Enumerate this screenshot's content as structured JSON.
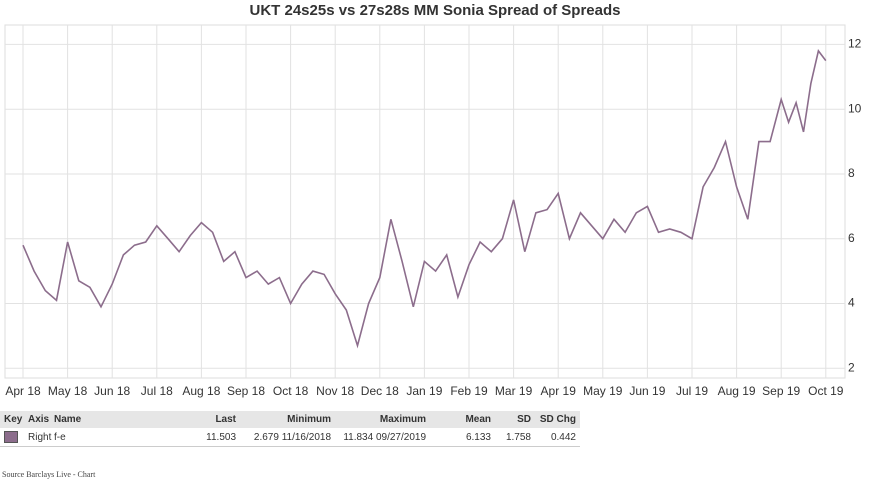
{
  "chart_data": {
    "type": "line",
    "title": "UKT 24s25s vs 27s28s MM Sonia Spread of Spreads",
    "x": [
      "Apr 18",
      "Apr 18",
      "Apr 18",
      "Apr 18",
      "May 18",
      "May 18",
      "May 18",
      "May 18",
      "Jun 18",
      "Jun 18",
      "Jun 18",
      "Jun 18",
      "Jul 18",
      "Jul 18",
      "Jul 18",
      "Jul 18",
      "Aug 18",
      "Aug 18",
      "Aug 18",
      "Aug 18",
      "Sep 18",
      "Sep 18",
      "Sep 18",
      "Sep 18",
      "Oct 18",
      "Oct 18",
      "Oct 18",
      "Oct 18",
      "Nov 18",
      "Nov 18",
      "Nov 18",
      "Nov 18",
      "Dec 18",
      "Dec 18",
      "Dec 18",
      "Dec 18",
      "Jan 19",
      "Jan 19",
      "Jan 19",
      "Jan 19",
      "Feb 19",
      "Feb 19",
      "Feb 19",
      "Feb 19",
      "Mar 19",
      "Mar 19",
      "Mar 19",
      "Mar 19",
      "Apr 19",
      "Apr 19",
      "Apr 19",
      "Apr 19",
      "May 19",
      "May 19",
      "May 19",
      "May 19",
      "Jun 19",
      "Jun 19",
      "Jun 19",
      "Jun 19",
      "Jul 19",
      "Jul 19",
      "Jul 19",
      "Jul 19",
      "Aug 19",
      "Aug 19",
      "Aug 19",
      "Aug 19",
      "Sep 19",
      "Sep 19",
      "Sep 19",
      "Sep 19",
      "Sep 19",
      "Sep 19",
      "Oct 19"
    ],
    "series": [
      {
        "name": "f-e",
        "color": "#8c6d8c",
        "values": [
          5.8,
          5.0,
          4.4,
          4.1,
          5.9,
          4.7,
          4.5,
          3.9,
          4.6,
          5.5,
          5.8,
          5.9,
          6.4,
          6.0,
          5.6,
          6.1,
          6.5,
          6.2,
          5.3,
          5.6,
          4.8,
          5.0,
          4.6,
          4.8,
          4.0,
          4.6,
          5.0,
          4.9,
          4.3,
          3.8,
          2.7,
          4.0,
          4.8,
          6.6,
          5.3,
          3.9,
          5.3,
          5.0,
          5.5,
          4.2,
          5.2,
          5.9,
          5.6,
          6.0,
          7.2,
          5.6,
          6.8,
          6.9,
          7.4,
          6.0,
          6.8,
          6.4,
          6.0,
          6.6,
          6.2,
          6.8,
          7.0,
          6.2,
          6.3,
          6.2,
          6.0,
          7.6,
          8.2,
          9.0,
          7.6,
          6.6,
          9.0,
          9.0,
          10.3,
          9.6,
          10.2,
          9.3,
          10.8,
          11.8,
          11.5
        ]
      }
    ],
    "xticks": [
      "Apr 18",
      "May 18",
      "Jun 18",
      "Jul 18",
      "Aug 18",
      "Sep 18",
      "Oct 18",
      "Nov 18",
      "Dec 18",
      "Jan 19",
      "Feb 19",
      "Mar 19",
      "Apr 19",
      "May 19",
      "Jun 19",
      "Jul 19",
      "Aug 19",
      "Sep 19",
      "Oct 19"
    ],
    "ylim": [
      1.7,
      12.6
    ],
    "yticks": [
      2,
      4,
      6,
      8,
      10,
      12
    ],
    "grid": true
  },
  "table": {
    "header": [
      "Key",
      "Axis",
      "Name",
      "Last",
      "Minimum",
      "Maximum",
      "Mean",
      "SD",
      "SD Chg"
    ],
    "row": [
      "Right",
      "f-e",
      "11.503",
      "2.679 11/16/2018",
      "11.834 09/27/2019",
      "6.133",
      "1.758",
      "0.442"
    ]
  },
  "source": "Source Barclays Live - Chart"
}
